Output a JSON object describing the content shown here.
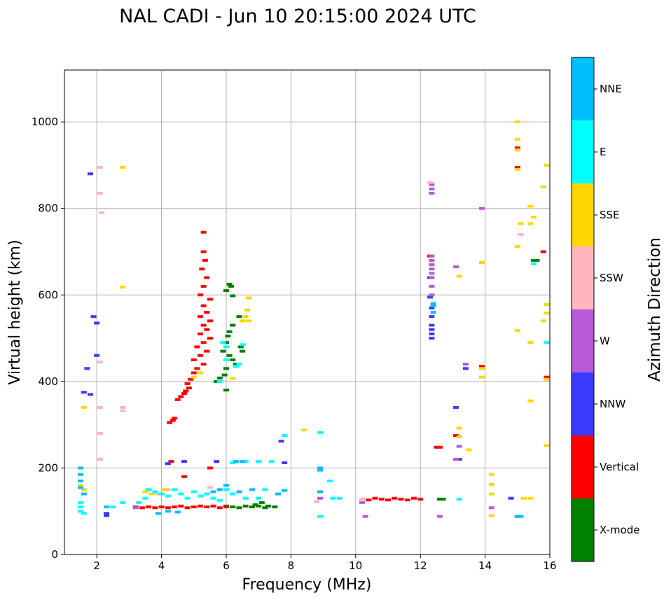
{
  "chart_data": {
    "type": "scatter",
    "title": "NAL CADI - Jun 10 20:15:00 2024 UTC",
    "xlabel": "Frequency (MHz)",
    "ylabel": "Virtual height (km)",
    "xlim": [
      1,
      16
    ],
    "ylim": [
      0,
      1120
    ],
    "xticks": [
      2,
      4,
      6,
      8,
      10,
      12,
      14,
      16
    ],
    "yticks": [
      0,
      200,
      400,
      600,
      800,
      1000
    ],
    "grid": true,
    "colorbar": {
      "label": "Azimuth Direction",
      "categories": [
        {
          "name": "X-mode",
          "color": "#008000"
        },
        {
          "name": "Vertical",
          "color": "#ff0000"
        },
        {
          "name": "NNW",
          "color": "#3a3aff"
        },
        {
          "name": "W",
          "color": "#b65ad6"
        },
        {
          "name": "SSW",
          "color": "#ffb6c1"
        },
        {
          "name": "SSE",
          "color": "#ffd700"
        },
        {
          "name": "E",
          "color": "#00ffff"
        },
        {
          "name": "NNE",
          "color": "#00bfff"
        }
      ]
    },
    "series": [
      {
        "name": "X-mode",
        "points": [
          [
            6.1,
            625
          ],
          [
            6.15,
            620
          ],
          [
            6.0,
            610
          ],
          [
            6.2,
            598
          ],
          [
            6.4,
            550
          ],
          [
            6.2,
            530
          ],
          [
            6.1,
            515
          ],
          [
            6.05,
            505
          ],
          [
            6.0,
            490
          ],
          [
            5.9,
            470
          ],
          [
            6.1,
            460
          ],
          [
            6.0,
            430
          ],
          [
            5.95,
            415
          ],
          [
            5.8,
            408
          ],
          [
            6.2,
            450
          ],
          [
            6.45,
            480
          ],
          [
            6.5,
            470
          ],
          [
            6.3,
            440
          ],
          [
            5.7,
            400
          ],
          [
            6.0,
            380
          ],
          [
            7.5,
            110
          ],
          [
            7.3,
            112
          ],
          [
            7.2,
            108
          ],
          [
            7.0,
            112
          ],
          [
            6.8,
            110
          ],
          [
            6.6,
            112
          ],
          [
            6.4,
            108
          ],
          [
            6.2,
            110
          ],
          [
            6.0,
            112
          ],
          [
            7.1,
            120
          ],
          [
            6.9,
            115
          ],
          [
            12.6,
            128
          ],
          [
            12.7,
            128
          ],
          [
            15.5,
            680
          ],
          [
            15.6,
            680
          ]
        ]
      },
      {
        "name": "Vertical",
        "points": [
          [
            5.3,
            745
          ],
          [
            5.3,
            700
          ],
          [
            5.35,
            680
          ],
          [
            5.25,
            660
          ],
          [
            5.4,
            640
          ],
          [
            5.3,
            620
          ],
          [
            5.2,
            600
          ],
          [
            5.5,
            590
          ],
          [
            5.3,
            575
          ],
          [
            5.4,
            560
          ],
          [
            5.2,
            550
          ],
          [
            5.5,
            540
          ],
          [
            5.3,
            530
          ],
          [
            5.4,
            520
          ],
          [
            5.2,
            510
          ],
          [
            5.5,
            500
          ],
          [
            5.3,
            490
          ],
          [
            5.1,
            480
          ],
          [
            5.4,
            470
          ],
          [
            5.2,
            460
          ],
          [
            5.0,
            450
          ],
          [
            5.3,
            440
          ],
          [
            5.1,
            430
          ],
          [
            5.0,
            420
          ],
          [
            4.9,
            405
          ],
          [
            4.8,
            395
          ],
          [
            4.85,
            385
          ],
          [
            4.75,
            378
          ],
          [
            4.7,
            372
          ],
          [
            4.6,
            365
          ],
          [
            4.5,
            358
          ],
          [
            4.4,
            315
          ],
          [
            4.35,
            310
          ],
          [
            4.25,
            305
          ],
          [
            4.3,
            215
          ],
          [
            5.0,
            110
          ],
          [
            4.8,
            108
          ],
          [
            4.6,
            112
          ],
          [
            4.4,
            110
          ],
          [
            4.2,
            108
          ],
          [
            4.0,
            110
          ],
          [
            3.8,
            108
          ],
          [
            3.6,
            110
          ],
          [
            3.4,
            108
          ],
          [
            3.2,
            110
          ],
          [
            5.2,
            112
          ],
          [
            5.4,
            110
          ],
          [
            5.6,
            112
          ],
          [
            5.8,
            108
          ],
          [
            6.0,
            110
          ],
          [
            4.7,
            180
          ],
          [
            5.5,
            200
          ],
          [
            10.6,
            130
          ],
          [
            10.8,
            128
          ],
          [
            11.0,
            126
          ],
          [
            11.2,
            130
          ],
          [
            11.4,
            128
          ],
          [
            11.6,
            126
          ],
          [
            11.8,
            130
          ],
          [
            12.0,
            128
          ],
          [
            10.4,
            126
          ],
          [
            12.3,
            690
          ],
          [
            12.5,
            248
          ],
          [
            12.6,
            248
          ],
          [
            13.9,
            435
          ],
          [
            15.8,
            700
          ],
          [
            15.9,
            410
          ],
          [
            13.1,
            275
          ],
          [
            15.0,
            895
          ],
          [
            15.0,
            940
          ]
        ]
      },
      {
        "name": "NNW",
        "points": [
          [
            1.8,
            880
          ],
          [
            1.9,
            550
          ],
          [
            2.0,
            535
          ],
          [
            2.0,
            460
          ],
          [
            1.7,
            430
          ],
          [
            1.6,
            375
          ],
          [
            1.8,
            370
          ],
          [
            2.3,
            95
          ],
          [
            2.3,
            90
          ],
          [
            12.35,
            500
          ],
          [
            12.35,
            510
          ],
          [
            12.35,
            520
          ],
          [
            12.35,
            530
          ],
          [
            12.35,
            550
          ],
          [
            12.35,
            570
          ],
          [
            12.3,
            595
          ],
          [
            12.3,
            640
          ],
          [
            13.4,
            430
          ],
          [
            13.1,
            340
          ],
          [
            13.2,
            220
          ],
          [
            14.8,
            130
          ],
          [
            15.0,
            88
          ],
          [
            4.2,
            210
          ],
          [
            4.7,
            215
          ],
          [
            5.7,
            215
          ],
          [
            7.8,
            212
          ],
          [
            7.7,
            262
          ]
        ]
      },
      {
        "name": "W",
        "points": [
          [
            12.35,
            855
          ],
          [
            12.35,
            845
          ],
          [
            12.35,
            835
          ],
          [
            12.35,
            690
          ],
          [
            12.35,
            680
          ],
          [
            12.35,
            670
          ],
          [
            12.35,
            660
          ],
          [
            12.35,
            650
          ],
          [
            12.35,
            640
          ],
          [
            12.35,
            620
          ],
          [
            12.35,
            600
          ],
          [
            13.4,
            440
          ],
          [
            13.1,
            665
          ],
          [
            13.9,
            800
          ],
          [
            13.2,
            250
          ],
          [
            13.1,
            220
          ],
          [
            12.6,
            88
          ],
          [
            14.2,
            108
          ],
          [
            10.3,
            88
          ],
          [
            10.2,
            120
          ],
          [
            8.9,
            130
          ],
          [
            3.2,
            108
          ]
        ]
      },
      {
        "name": "SSW",
        "points": [
          [
            2.1,
            895
          ],
          [
            2.1,
            835
          ],
          [
            2.15,
            790
          ],
          [
            2.1,
            445
          ],
          [
            2.1,
            340
          ],
          [
            2.1,
            280
          ],
          [
            2.1,
            220
          ],
          [
            2.8,
            340
          ],
          [
            2.8,
            332
          ],
          [
            15.1,
            740
          ],
          [
            15.0,
            935
          ],
          [
            12.3,
            860
          ],
          [
            10.2,
            128
          ],
          [
            8.8,
            122
          ],
          [
            5.5,
            155
          ],
          [
            4.2,
            150
          ],
          [
            3.9,
            140
          ],
          [
            1.5,
            200
          ]
        ]
      },
      {
        "name": "SSE",
        "points": [
          [
            2.8,
            895
          ],
          [
            2.8,
            618
          ],
          [
            1.6,
            340
          ],
          [
            15.0,
            1000
          ],
          [
            15.0,
            960
          ],
          [
            15.0,
            935
          ],
          [
            15.0,
            890
          ],
          [
            15.9,
            900
          ],
          [
            15.8,
            850
          ],
          [
            15.4,
            805
          ],
          [
            15.5,
            780
          ],
          [
            15.1,
            765
          ],
          [
            15.4,
            765
          ],
          [
            15.0,
            712
          ],
          [
            13.9,
            675
          ],
          [
            13.2,
            643
          ],
          [
            15.9,
            578
          ],
          [
            15.9,
            558
          ],
          [
            15.8,
            540
          ],
          [
            15.0,
            518
          ],
          [
            15.4,
            490
          ],
          [
            13.9,
            410
          ],
          [
            13.9,
            430
          ],
          [
            15.4,
            355
          ],
          [
            15.9,
            405
          ],
          [
            13.2,
            292
          ],
          [
            13.2,
            272
          ],
          [
            13.5,
            242
          ],
          [
            15.9,
            252
          ],
          [
            14.2,
            185
          ],
          [
            14.2,
            162
          ],
          [
            14.2,
            140
          ],
          [
            14.2,
            90
          ],
          [
            15.2,
            130
          ],
          [
            15.4,
            130
          ],
          [
            8.4,
            288
          ],
          [
            6.7,
            593
          ],
          [
            6.65,
            565
          ],
          [
            6.6,
            550
          ],
          [
            6.5,
            540
          ],
          [
            6.7,
            540
          ],
          [
            5.0,
            410
          ],
          [
            5.2,
            420
          ],
          [
            6.2,
            407
          ],
          [
            1.5,
            160
          ],
          [
            1.6,
            150
          ],
          [
            3.5,
            145
          ],
          [
            3.7,
            140
          ],
          [
            4.1,
            150
          ]
        ]
      },
      {
        "name": "E",
        "points": [
          [
            6.5,
            485
          ],
          [
            6.4,
            440
          ],
          [
            6.3,
            435
          ],
          [
            6.0,
            480
          ],
          [
            5.9,
            490
          ],
          [
            6.0,
            450
          ],
          [
            5.8,
            400
          ],
          [
            7.8,
            275
          ],
          [
            8.9,
            282
          ],
          [
            8.9,
            88
          ],
          [
            9.2,
            170
          ],
          [
            9.3,
            130
          ],
          [
            9.5,
            130
          ],
          [
            13.2,
            128
          ],
          [
            15.5,
            672
          ],
          [
            15.9,
            490
          ],
          [
            1.5,
            110
          ],
          [
            1.5,
            100
          ],
          [
            1.5,
            120
          ],
          [
            1.6,
            95
          ],
          [
            3.6,
            150
          ],
          [
            3.8,
            145
          ],
          [
            4.0,
            140
          ],
          [
            4.2,
            135
          ],
          [
            4.4,
            150
          ],
          [
            4.6,
            140
          ],
          [
            4.8,
            130
          ],
          [
            5.0,
            145
          ],
          [
            5.2,
            135
          ],
          [
            5.4,
            140
          ],
          [
            5.6,
            130
          ],
          [
            5.8,
            125
          ],
          [
            6.0,
            150
          ],
          [
            6.2,
            140
          ],
          [
            6.6,
            130
          ],
          [
            7.0,
            130
          ],
          [
            7.2,
            150
          ],
          [
            6.6,
            215
          ],
          [
            7.0,
            215
          ],
          [
            7.4,
            215
          ],
          [
            6.2,
            212
          ],
          [
            3.5,
            130
          ],
          [
            3.3,
            120
          ],
          [
            2.8,
            120
          ],
          [
            2.5,
            110
          ]
        ]
      },
      {
        "name": "NNE",
        "points": [
          [
            1.5,
            200
          ],
          [
            1.5,
            185
          ],
          [
            1.5,
            170
          ],
          [
            1.5,
            155
          ],
          [
            1.6,
            140
          ],
          [
            8.9,
            200
          ],
          [
            8.9,
            195
          ],
          [
            8.9,
            145
          ],
          [
            12.4,
            575
          ],
          [
            12.4,
            560
          ],
          [
            12.4,
            580
          ],
          [
            15.0,
            88
          ],
          [
            15.1,
            88
          ],
          [
            6.5,
            215
          ],
          [
            6.3,
            215
          ],
          [
            7.8,
            148
          ],
          [
            7.6,
            140
          ],
          [
            6.8,
            150
          ],
          [
            6.4,
            145
          ],
          [
            6.0,
            160
          ],
          [
            5.8,
            150
          ],
          [
            5.6,
            145
          ],
          [
            4.2,
            100
          ],
          [
            3.9,
            95
          ],
          [
            2.3,
            110
          ],
          [
            4.5,
            98
          ]
        ]
      }
    ]
  }
}
